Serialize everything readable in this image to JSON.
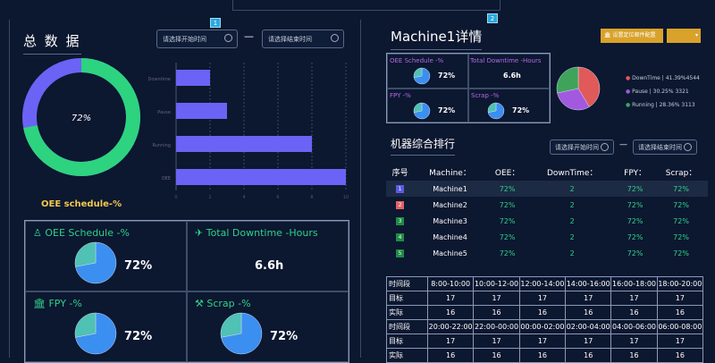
{
  "left": {
    "title": "总 数 据",
    "badge": "1",
    "start_placeholder": "请选择开始时间",
    "end_placeholder": "请选择结束时间",
    "dash": "—",
    "donut": {
      "value": 72,
      "label": "72%",
      "caption": "OEE schedule-%",
      "colors": [
        "#2ed37f",
        "#6a63f5"
      ]
    },
    "bar_chart": {
      "categories": [
        "Downtime",
        "Pause",
        "Running",
        "OEE"
      ],
      "values": [
        2,
        3,
        8,
        10
      ],
      "ticks": [
        "0",
        "2",
        "4",
        "6",
        "8",
        "10"
      ],
      "xlim": [
        0,
        10
      ],
      "color": "#6a63f5"
    },
    "kpis": [
      {
        "title": "OEE Schedule -%",
        "value": "72%",
        "pct": 72,
        "icon": "person-icon"
      },
      {
        "title": "Total Downtime  -Hours",
        "value": "6.6h",
        "icon": "plane-icon"
      },
      {
        "title": "FPY -%",
        "value": "72%",
        "pct": 72,
        "icon": "bank-icon"
      },
      {
        "title": "Scrap -%",
        "value": "72%",
        "pct": 72,
        "icon": "gavel-icon"
      }
    ]
  },
  "right": {
    "title": "Machine1详情",
    "badge": "2",
    "config_button": "设置定位邮件配置",
    "kpis": [
      {
        "title": "OEE Schedule -%",
        "value": "72%",
        "pct": 72
      },
      {
        "title": "Total Downtime  -Hours",
        "value": "6.6h"
      },
      {
        "title": "FPY -%",
        "value": "72%",
        "pct": 72
      },
      {
        "title": "Scrap -%",
        "value": "72%",
        "pct": 72
      }
    ],
    "pie": [
      {
        "name": "DownTime",
        "text": "DownTime | 41.39%4544",
        "pct": 41.39,
        "color": "#e05a5a"
      },
      {
        "name": "Pause",
        "text": "Pause | 30.25%      3321",
        "pct": 30.25,
        "color": "#a259e0"
      },
      {
        "name": "Running",
        "text": "Running | 28.36%  3113",
        "pct": 28.36,
        "color": "#3fa35a"
      }
    ],
    "rank_title": "机器综合排行",
    "start_placeholder": "请选择开始时间",
    "end_placeholder": "请选择结束时间",
    "dash": "—",
    "rank_headers": [
      "序号",
      "Machine：",
      "OEE：",
      "DownTime：",
      "FPY：",
      "Scrap："
    ],
    "rank_rows": [
      {
        "n": "1",
        "color": "#5b5be0",
        "machine": "Machine1",
        "oee": "72%",
        "dt": "2",
        "fpy": "72%",
        "scrap": "72%"
      },
      {
        "n": "2",
        "color": "#e0606a",
        "machine": "Machine2",
        "oee": "72%",
        "dt": "2",
        "fpy": "72%",
        "scrap": "72%"
      },
      {
        "n": "3",
        "color": "#1f8a4a",
        "machine": "Machine3",
        "oee": "72%",
        "dt": "2",
        "fpy": "72%",
        "scrap": "72%"
      },
      {
        "n": "4",
        "color": "#1f8a4a",
        "machine": "Machine4",
        "oee": "72%",
        "dt": "2",
        "fpy": "72%",
        "scrap": "72%"
      },
      {
        "n": "5",
        "color": "#1f8a4a",
        "machine": "Machine5",
        "oee": "72%",
        "dt": "2",
        "fpy": "72%",
        "scrap": "72%"
      }
    ],
    "schedule": [
      [
        "时间段",
        "8:00-10:00",
        "10:00-12-00",
        "12:00-14:00",
        "14:00-16:00",
        "16:00-18:00",
        "18:00-20:00"
      ],
      [
        "目标",
        "17",
        "17",
        "17",
        "17",
        "17",
        "17"
      ],
      [
        "实际",
        "16",
        "16",
        "16",
        "16",
        "16",
        "16"
      ],
      [
        "时间段",
        "20:00-22:00",
        "22:00-00:00",
        "00:00-02:00",
        "02:00-04:00",
        "04:00-06:00",
        "06:00-08:00"
      ],
      [
        "目标",
        "17",
        "17",
        "17",
        "17",
        "17",
        "17"
      ],
      [
        "实际",
        "16",
        "16",
        "16",
        "16",
        "16",
        "16"
      ]
    ]
  }
}
